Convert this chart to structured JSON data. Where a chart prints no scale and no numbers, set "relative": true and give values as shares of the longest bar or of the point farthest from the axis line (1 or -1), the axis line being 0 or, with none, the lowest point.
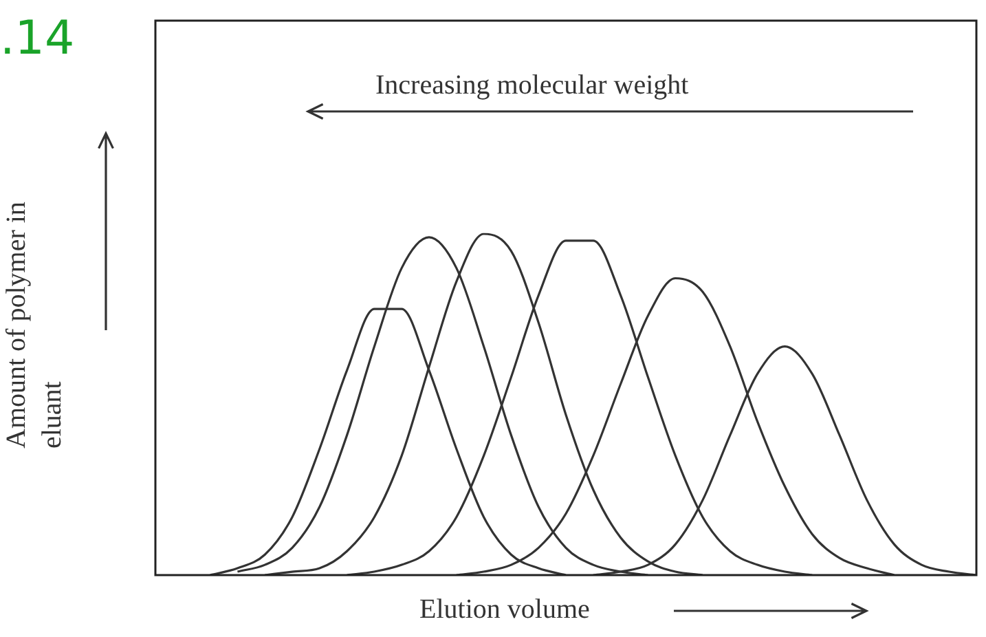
{
  "chart_data": {
    "type": "line",
    "relative": true,
    "tick_labels": false,
    "xlabel": "Elution volume",
    "ylabel": "Amount of polymer in eluant",
    "annotations": [
      ".14",
      "Increasing molecular weight"
    ],
    "categories": [
      null,
      null,
      null,
      null,
      null,
      null,
      null,
      null,
      null,
      null,
      null,
      null,
      null,
      null,
      null,
      null,
      null,
      null,
      null,
      null,
      null,
      null,
      null,
      null,
      null,
      null,
      null,
      null,
      null,
      null,
      null
    ],
    "series": [
      {
        "color": "#333333",
        "values": [
          null,
          null,
          0,
          0.02,
          0.06,
          0.17,
          0.37,
          0.6,
          0.78,
          0.78,
          0.6,
          0.37,
          0.17,
          0.06,
          0.02,
          0,
          null,
          null,
          null,
          null,
          null,
          null,
          null,
          null,
          null,
          null,
          null,
          null,
          null,
          null,
          null
        ]
      },
      {
        "color": "#333333",
        "values": [
          null,
          null,
          null,
          0.01,
          0.03,
          0.08,
          0.2,
          0.41,
          0.67,
          0.9,
          0.99,
          0.9,
          0.67,
          0.41,
          0.2,
          0.08,
          0.03,
          0.01,
          0,
          null,
          null,
          null,
          null,
          null,
          null,
          null,
          null,
          null,
          null,
          null,
          null
        ]
      },
      {
        "color": "#333333",
        "values": [
          null,
          null,
          null,
          null,
          0,
          0.01,
          0.02,
          0.07,
          0.17,
          0.35,
          0.61,
          0.86,
          1,
          0.95,
          0.74,
          0.47,
          0.25,
          0.11,
          0.04,
          0.01,
          0,
          null,
          null,
          null,
          null,
          null,
          null,
          null,
          null,
          null,
          null
        ]
      },
      {
        "color": "#333333",
        "values": [
          null,
          null,
          null,
          null,
          null,
          null,
          null,
          0,
          0.01,
          0.03,
          0.07,
          0.17,
          0.35,
          0.58,
          0.82,
          0.98,
          0.98,
          0.82,
          0.58,
          0.35,
          0.17,
          0.07,
          0.03,
          0.01,
          0,
          null,
          null,
          null,
          null,
          null,
          null
        ]
      },
      {
        "color": "#333333",
        "values": [
          null,
          null,
          null,
          null,
          null,
          null,
          null,
          null,
          null,
          null,
          null,
          0,
          0.01,
          0.03,
          0.08,
          0.18,
          0.35,
          0.56,
          0.76,
          0.87,
          0.83,
          0.67,
          0.45,
          0.26,
          0.12,
          0.05,
          0.02,
          0,
          null,
          null,
          null
        ]
      },
      {
        "color": "#333333",
        "values": [
          null,
          null,
          null,
          null,
          null,
          null,
          null,
          null,
          null,
          null,
          null,
          null,
          null,
          null,
          null,
          null,
          0,
          0.01,
          0.03,
          0.09,
          0.22,
          0.41,
          0.59,
          0.67,
          0.59,
          0.41,
          0.22,
          0.09,
          0.03,
          0.01,
          0
        ]
      }
    ]
  }
}
